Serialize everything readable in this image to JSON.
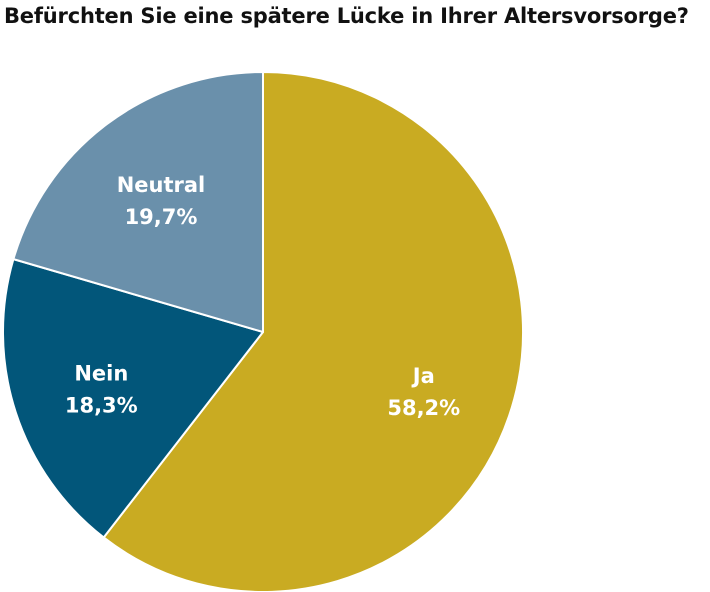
{
  "chart_data": {
    "type": "pie",
    "title": "Befürchten Sie eine spätere Lücke in Ihrer Altersvorsorge?",
    "slices": [
      {
        "label": "Ja",
        "value": 58.2,
        "value_label": "58,2%",
        "color": "#C9AB22"
      },
      {
        "label": "Nein",
        "value": 18.3,
        "value_label": "18,3%",
        "color": "#02567A"
      },
      {
        "label": "Neutral",
        "value": 19.7,
        "value_label": "19,7%",
        "color": "#6A90AB"
      }
    ],
    "start": "12 o'clock",
    "direction": "clockwise",
    "slice_border_color": "#ffffff",
    "legend": "none"
  }
}
